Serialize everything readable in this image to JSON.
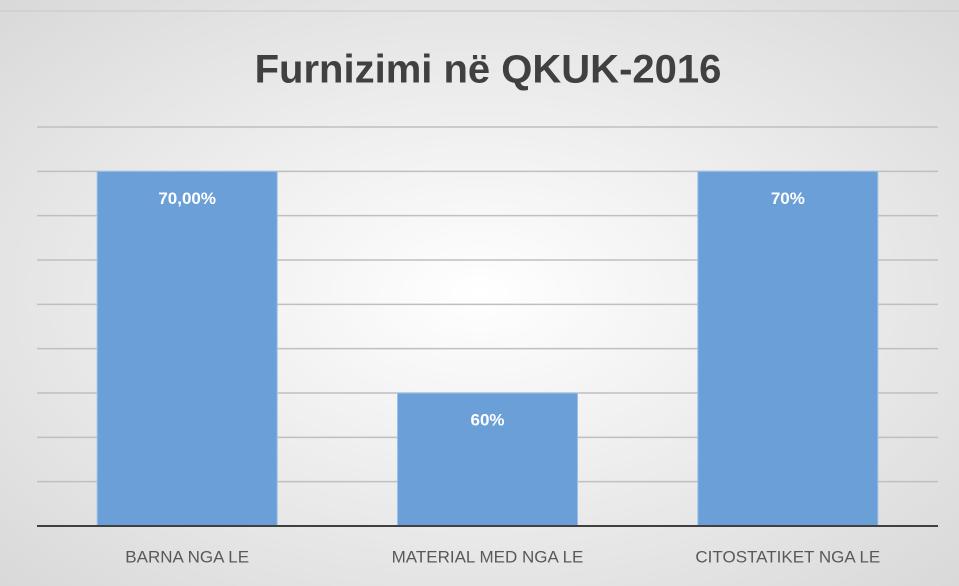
{
  "chart_data": {
    "type": "bar",
    "title": "Furnizimi në QKUK-2016",
    "categories": [
      "BARNA NGA LE",
      "MATERIAL MED NGA LE",
      "CITOSTATIKET NGA LE"
    ],
    "values": [
      70,
      60,
      70
    ],
    "value_labels": [
      "70,00%",
      "60%",
      "70%"
    ],
    "color": "#6a9fd8",
    "ylim": [
      54,
      72
    ],
    "yticks": [
      54,
      56,
      58,
      60,
      62,
      64,
      66,
      68,
      70,
      72
    ],
    "grid": true
  }
}
